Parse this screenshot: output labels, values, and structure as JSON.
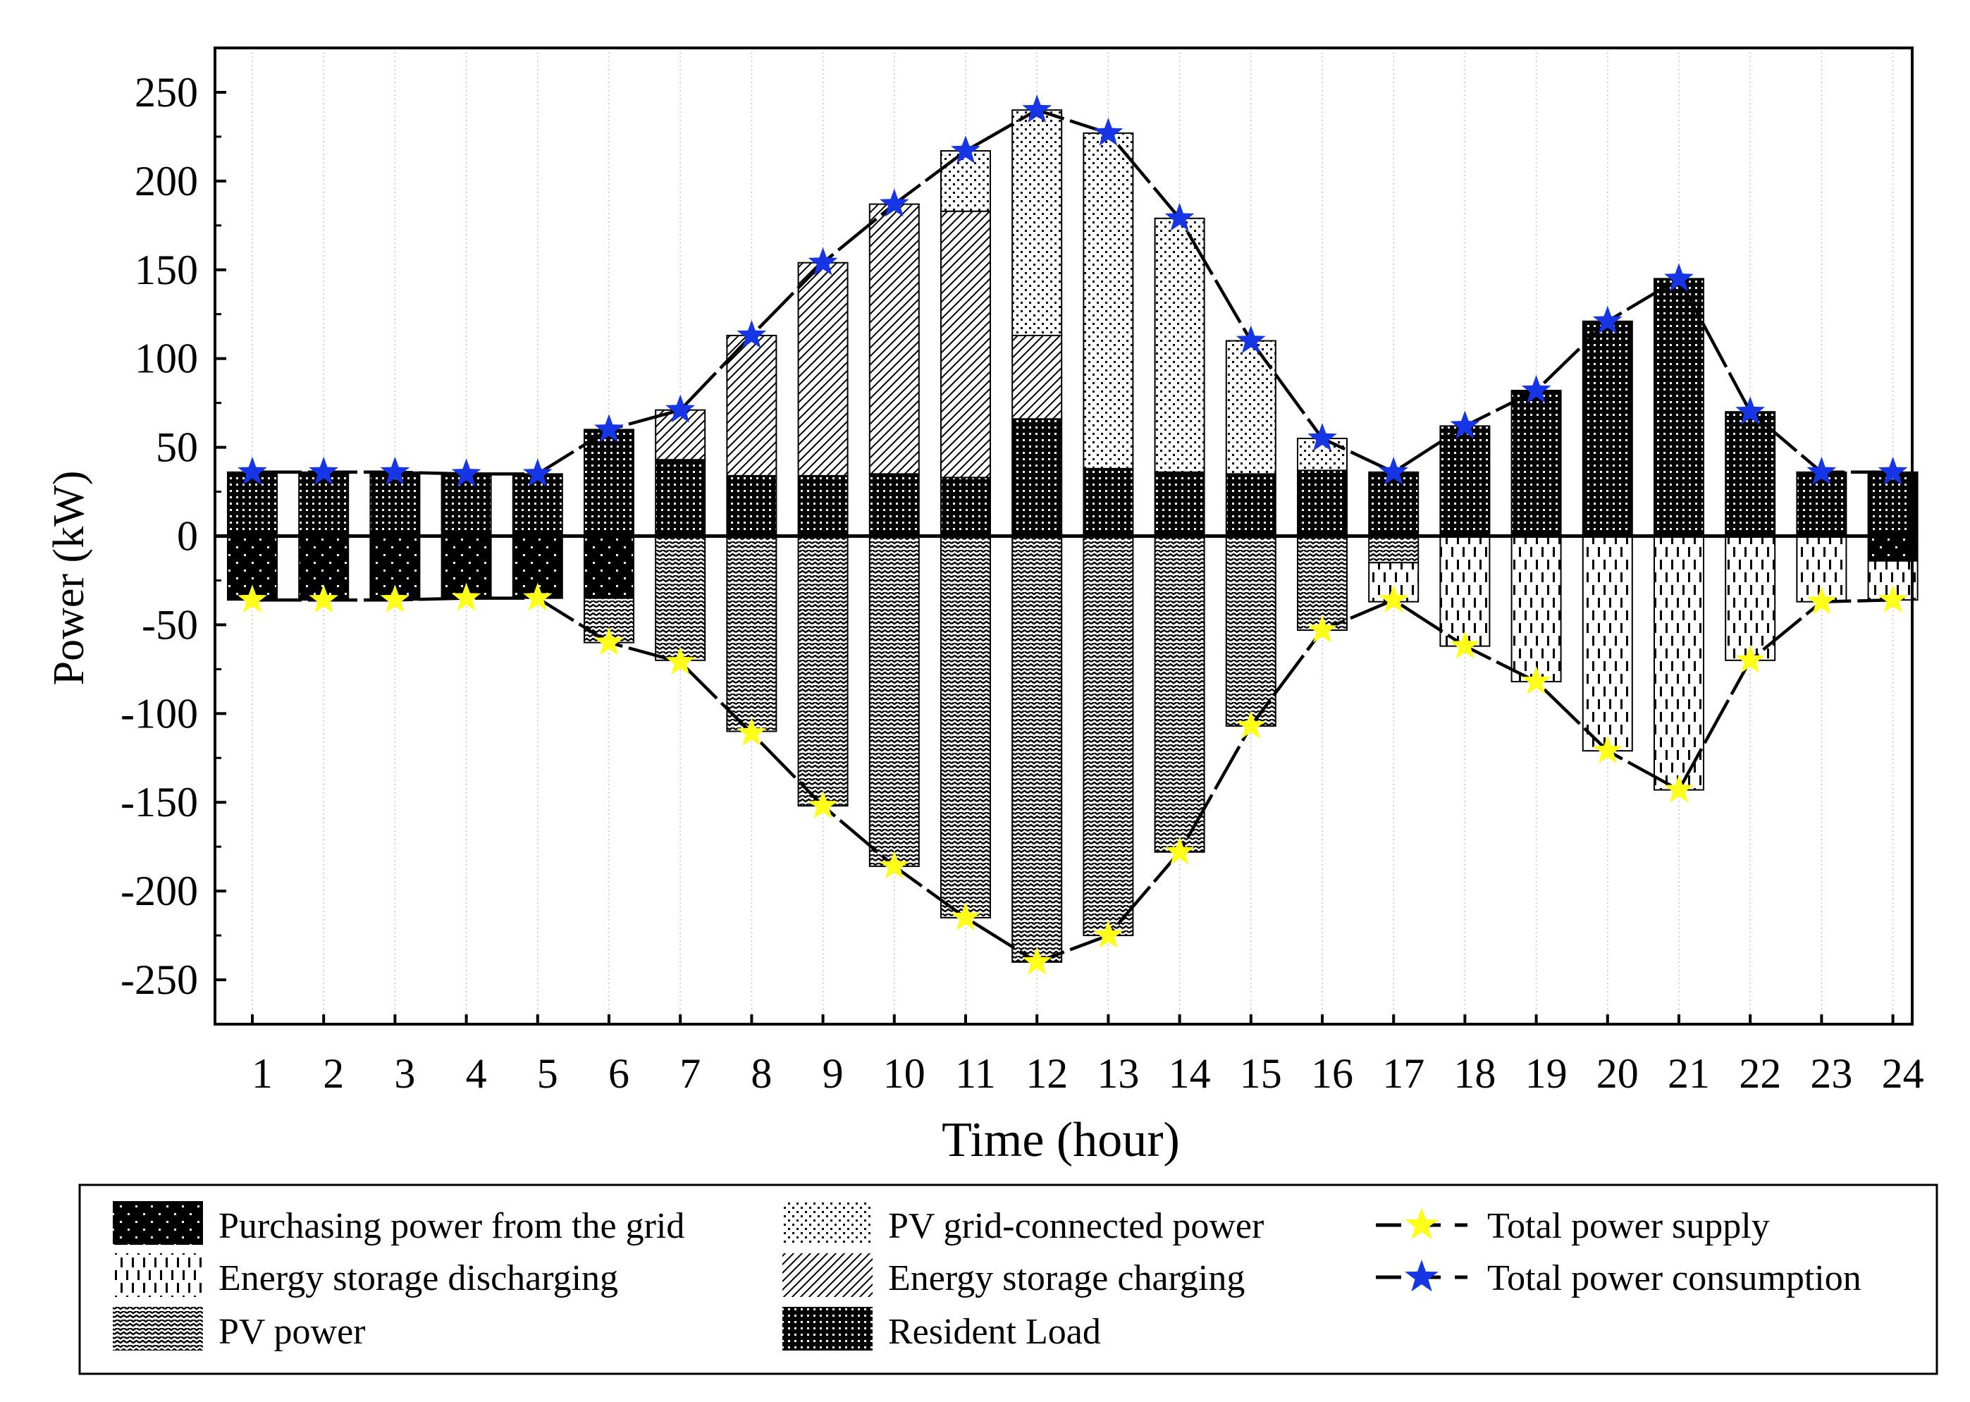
{
  "chart_data": {
    "type": "bar",
    "xlabel": "Time (hour)",
    "ylabel": "Power (kW)",
    "ylim": [
      -275,
      275
    ],
    "y_ticks": [
      -250,
      -200,
      -150,
      -100,
      -50,
      0,
      50,
      100,
      150,
      200,
      250
    ],
    "categories": [
      "1",
      "2",
      "3",
      "4",
      "5",
      "6",
      "7",
      "8",
      "9",
      "10",
      "11",
      "12",
      "13",
      "14",
      "15",
      "16",
      "17",
      "18",
      "19",
      "20",
      "21",
      "22",
      "23",
      "24"
    ],
    "positive_series": [
      {
        "name": "Resident Load",
        "pattern": "dense-dots",
        "values": [
          36,
          36,
          36,
          35,
          35,
          60,
          43,
          34,
          34,
          35,
          33,
          66,
          38,
          36,
          35,
          37,
          36,
          62,
          82,
          121,
          145,
          70,
          36,
          36
        ]
      },
      {
        "name": "Energy storage charging",
        "pattern": "diagonal",
        "values": [
          0,
          0,
          0,
          0,
          0,
          0,
          28,
          79,
          120,
          152,
          150,
          47,
          0,
          0,
          0,
          0,
          0,
          0,
          0,
          0,
          0,
          0,
          0,
          0
        ]
      },
      {
        "name": "PV grid-connected power",
        "pattern": "sparse-dots",
        "values": [
          0,
          0,
          0,
          0,
          0,
          0,
          0,
          0,
          0,
          0,
          34,
          127,
          189,
          143,
          75,
          18,
          0,
          0,
          0,
          0,
          0,
          0,
          0,
          0
        ]
      }
    ],
    "negative_series": [
      {
        "name": "Purchasing power from the grid",
        "pattern": "black-dots",
        "values": [
          -36,
          -36,
          -36,
          -35,
          -35,
          -35,
          0,
          0,
          0,
          0,
          0,
          0,
          0,
          0,
          0,
          0,
          0,
          0,
          0,
          0,
          0,
          0,
          0,
          -14
        ]
      },
      {
        "name": "PV power",
        "pattern": "zigzag",
        "values": [
          0,
          0,
          0,
          0,
          0,
          -25,
          -70,
          -110,
          -152,
          -186,
          -215,
          -240,
          -225,
          -178,
          -107,
          -53,
          -15,
          0,
          0,
          0,
          0,
          0,
          0,
          0
        ]
      },
      {
        "name": "Energy storage discharging",
        "pattern": "dashes",
        "values": [
          0,
          0,
          0,
          0,
          0,
          0,
          0,
          0,
          0,
          0,
          0,
          0,
          0,
          0,
          0,
          0,
          -22,
          -62,
          -82,
          -121,
          -143,
          -70,
          -37,
          -22
        ]
      }
    ],
    "line_series": [
      {
        "name": "Total power consumption",
        "marker": "star",
        "color": "#1636e6",
        "values": [
          36,
          36,
          36,
          35,
          35,
          60,
          71,
          113,
          154,
          187,
          217,
          240,
          227,
          179,
          110,
          55,
          36,
          62,
          82,
          121,
          145,
          70,
          36,
          36
        ]
      },
      {
        "name": "Total power supply",
        "marker": "star",
        "color": "#ffff1a",
        "values": [
          -36,
          -36,
          -36,
          -35,
          -35,
          -60,
          -71,
          -111,
          -152,
          -186,
          -215,
          -240,
          -225,
          -178,
          -107,
          -53,
          -36,
          -62,
          -82,
          -121,
          -143,
          -70,
          -37,
          -36
        ]
      }
    ],
    "legend": {
      "position": "bottom",
      "items": [
        "Purchasing power from the grid",
        "PV grid-connected power",
        "Total power supply",
        "Energy storage discharging",
        "Energy storage charging",
        "Total power consumption",
        "PV power",
        "Resident Load"
      ]
    }
  }
}
